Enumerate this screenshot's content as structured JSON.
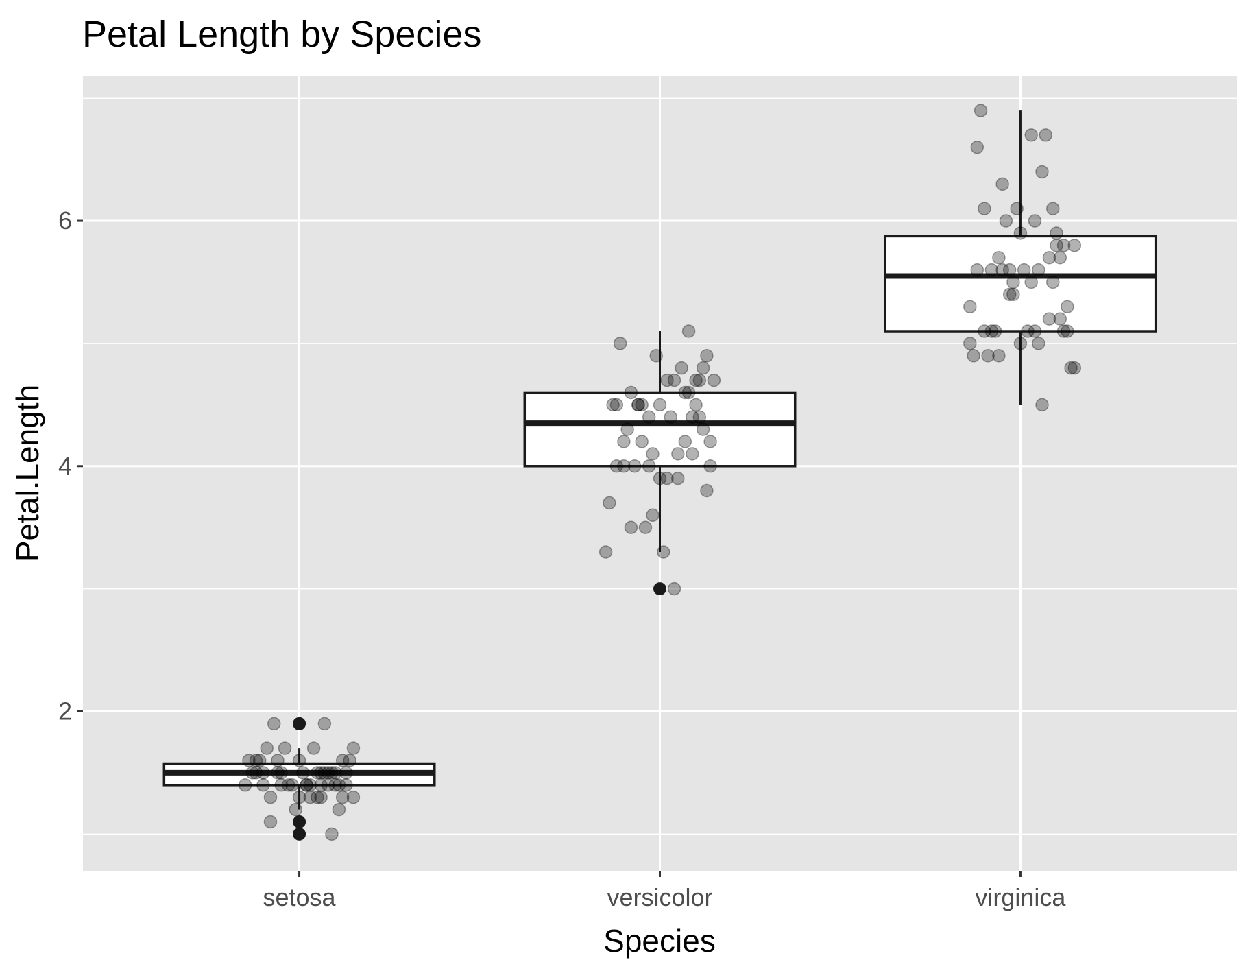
{
  "chart_data": {
    "type": "boxplot",
    "title": "Petal Length by Species",
    "xlabel": "Species",
    "ylabel": "Petal.Length",
    "categories": [
      "setosa",
      "versicolor",
      "virginica"
    ],
    "ylim": [
      0.7,
      7.18
    ],
    "yticks": [
      2,
      4,
      6
    ],
    "grid": true,
    "legend": "none",
    "colors": {
      "panel": "#e5e5e5",
      "grid": "#ffffff",
      "box_fill": "#ffffff",
      "box_line": "#1a1a1a",
      "point": "#000000",
      "tick_text": "#4d4d4d"
    },
    "boxes": [
      {
        "category": "setosa",
        "lower_whisker": 1.2,
        "q1": 1.4,
        "median": 1.5,
        "q3": 1.575,
        "upper_whisker": 1.7,
        "outliers": [
          1.0,
          1.1,
          1.9,
          1.9
        ]
      },
      {
        "category": "versicolor",
        "lower_whisker": 3.3,
        "q1": 4.0,
        "median": 4.35,
        "q3": 4.6,
        "upper_whisker": 5.1,
        "outliers": [
          3.0
        ]
      },
      {
        "category": "virginica",
        "lower_whisker": 4.5,
        "q1": 5.1,
        "median": 5.55,
        "q3": 5.875,
        "upper_whisker": 6.9,
        "outliers": []
      }
    ],
    "jitter_points": [
      {
        "category": "setosa",
        "x": [
          -0.05,
          0.08,
          0.12,
          -0.1,
          0.02,
          0.15,
          -0.15,
          -0.12,
          0.03,
          0.1,
          0.05,
          0.0,
          -0.02,
          -0.08,
          0.11,
          -0.06,
          0.06,
          0.13,
          -0.09,
          0.07,
          -0.04,
          -0.13,
          0.09,
          0.04,
          -0.07,
          0.14,
          -0.11,
          0.01,
          -0.03,
          0.12,
          -0.14,
          0.08,
          -0.05,
          0.1,
          0.06,
          -0.01,
          0.03,
          -0.1,
          0.15,
          0.09,
          -0.08,
          0.0,
          0.05,
          -0.12,
          0.07,
          0.11,
          -0.06,
          0.02,
          0.13,
          0.06
        ],
        "y": [
          1.4,
          1.4,
          1.3,
          1.5,
          1.4,
          1.7,
          1.4,
          1.5,
          1.4,
          1.5,
          1.5,
          1.6,
          1.4,
          1.1,
          1.2,
          1.5,
          1.3,
          1.4,
          1.7,
          1.5,
          1.7,
          1.5,
          1.0,
          1.7,
          1.9,
          1.6,
          1.6,
          1.5,
          1.4,
          1.6,
          1.6,
          1.5,
          1.5,
          1.4,
          1.5,
          1.2,
          1.3,
          1.4,
          1.3,
          1.5,
          1.3,
          1.3,
          1.3,
          1.6,
          1.9,
          1.4,
          1.6,
          1.4,
          1.5,
          1.4
        ]
      },
      {
        "category": "versicolor",
        "x": [
          0.1,
          -0.05,
          0.13,
          -0.03,
          0.08,
          -0.12,
          0.02,
          -0.15,
          0.07,
          0.0,
          -0.08,
          0.14,
          -0.1,
          0.04,
          -0.02,
          0.11,
          -0.06,
          0.09,
          -0.13,
          0.05,
          0.12,
          -0.07,
          -0.01,
          0.15,
          -0.09,
          0.03,
          0.06,
          -0.11,
          0.1,
          -0.04,
          0.13,
          -0.14,
          0.02,
          0.08,
          -0.06,
          0.0,
          0.11,
          -0.03,
          0.05,
          -0.12,
          0.09,
          -0.08,
          0.14,
          0.01,
          -0.1,
          0.07,
          -0.05,
          0.12,
          0.04,
          -0.02
        ],
        "y": [
          4.7,
          4.5,
          4.9,
          4.0,
          4.6,
          4.5,
          4.7,
          3.3,
          4.6,
          3.9,
          3.5,
          4.2,
          4.0,
          4.7,
          3.6,
          4.4,
          4.5,
          4.1,
          4.5,
          3.9,
          4.8,
          4.0,
          4.9,
          4.7,
          4.3,
          4.4,
          4.8,
          5.0,
          4.5,
          3.5,
          3.8,
          3.7,
          3.9,
          5.1,
          4.5,
          4.5,
          4.7,
          4.4,
          4.1,
          4.0,
          4.4,
          4.6,
          4.0,
          3.3,
          4.2,
          4.2,
          4.2,
          4.3,
          3.0,
          4.1
        ]
      },
      {
        "category": "virginica",
        "x": [
          0.04,
          -0.08,
          0.1,
          -0.03,
          0.12,
          -0.12,
          0.06,
          -0.05,
          0.15,
          -0.1,
          0.02,
          -0.14,
          0.09,
          0.0,
          -0.07,
          0.13,
          -0.02,
          0.07,
          -0.11,
          0.05,
          0.11,
          -0.06,
          0.03,
          -0.13,
          0.08,
          -0.04,
          0.14,
          -0.09,
          0.01,
          0.1,
          -0.01,
          0.06,
          -0.12,
          0.12,
          -0.05,
          0.09,
          -0.08,
          0.03,
          0.15,
          -0.03,
          0.05,
          -0.1,
          0.13,
          0.0,
          -0.06,
          0.08,
          -0.14,
          0.11,
          -0.02,
          0.04
        ],
        "y": [
          6.0,
          5.1,
          5.9,
          5.6,
          5.8,
          6.6,
          4.5,
          6.3,
          5.8,
          6.1,
          5.1,
          5.3,
          5.5,
          5.0,
          5.1,
          5.3,
          5.5,
          6.7,
          6.9,
          5.0,
          5.7,
          4.9,
          6.7,
          4.9,
          5.7,
          6.0,
          4.8,
          4.9,
          5.6,
          5.8,
          6.1,
          6.4,
          5.6,
          5.1,
          5.6,
          6.1,
          5.6,
          5.5,
          4.8,
          5.4,
          5.6,
          5.1,
          5.1,
          5.9,
          5.7,
          5.2,
          5.0,
          5.2,
          5.4,
          5.1
        ]
      }
    ]
  }
}
